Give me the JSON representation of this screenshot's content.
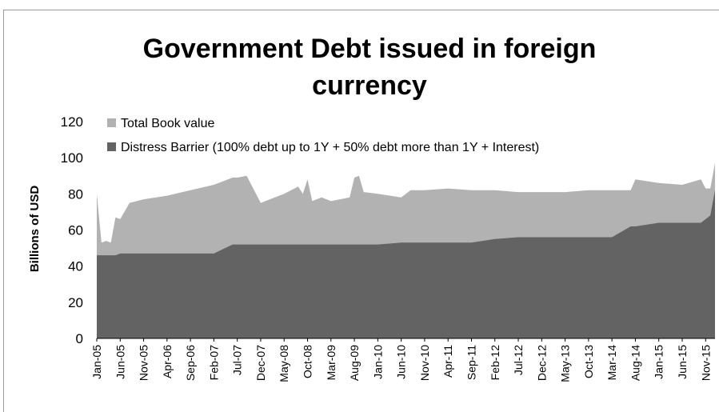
{
  "chart_data": {
    "type": "area",
    "title": "Government Debt issued in foreign currency",
    "title_lines": [
      "Government Debt issued in foreign",
      "currency"
    ],
    "ylabel": "Billions of USD",
    "xlabel": "",
    "ylim": [
      0,
      120
    ],
    "yticks": [
      0,
      20,
      40,
      60,
      80,
      100,
      120
    ],
    "grid": false,
    "legend_position": "top-left",
    "x_tick_labels": [
      "Jan-05",
      "Jun-05",
      "Nov-05",
      "Apr-06",
      "Sep-06",
      "Feb-07",
      "Jul-07",
      "Dec-07",
      "May-08",
      "Oct-08",
      "Mar-09",
      "Aug-09",
      "Jan-10",
      "Jun-10",
      "Nov-10",
      "Apr-11",
      "Sep-11",
      "Feb-12",
      "Jul-12",
      "Dec-12",
      "May-13",
      "Oct-13",
      "Mar-14",
      "Aug-14",
      "Jan-15",
      "Jun-15",
      "Nov-15"
    ],
    "x": [
      "Jan-05",
      "Feb-05",
      "Mar-05",
      "Apr-05",
      "May-05",
      "Jun-05",
      "Aug-05",
      "Nov-05",
      "Apr-06",
      "Sep-06",
      "Feb-07",
      "Jun-07",
      "Jul-07",
      "Sep-07",
      "Dec-07",
      "May-08",
      "Aug-08",
      "Sep-08",
      "Oct-08",
      "Nov-08",
      "Jan-09",
      "Mar-09",
      "Jul-09",
      "Aug-09",
      "Sep-09",
      "Oct-09",
      "Jan-10",
      "Jun-10",
      "Aug-10",
      "Nov-10",
      "Apr-11",
      "Sep-11",
      "Feb-12",
      "Jul-12",
      "Dec-12",
      "May-13",
      "Oct-13",
      "Dec-13",
      "Mar-14",
      "Jul-14",
      "Aug-14",
      "Jan-15",
      "Jun-15",
      "Oct-15",
      "Nov-15",
      "Dec-15",
      "Jan-16"
    ],
    "series": [
      {
        "name": "Total Book value",
        "color": "#b2b2b2",
        "values": [
          80,
          53,
          54,
          53,
          67,
          66,
          75,
          77,
          79,
          82,
          85,
          89,
          89,
          90,
          75,
          80,
          84,
          80,
          88,
          76,
          78,
          76,
          78,
          89,
          90,
          81,
          80,
          78,
          82,
          82,
          83,
          82,
          82,
          81,
          81,
          81,
          82,
          82,
          82,
          82,
          88,
          86,
          85,
          88,
          83,
          83,
          97
        ]
      },
      {
        "name": "Distress Barrier (100% debt up to 1Y + 50% debt more than 1Y + Interest)",
        "color": "#636363",
        "values": [
          46,
          46,
          46,
          46,
          46,
          47,
          47,
          47,
          47,
          47,
          47,
          52,
          52,
          52,
          52,
          52,
          52,
          52,
          52,
          52,
          52,
          52,
          52,
          52,
          52,
          52,
          52,
          53,
          53,
          53,
          53,
          53,
          55,
          56,
          56,
          56,
          56,
          56,
          56,
          62,
          62,
          64,
          64,
          64,
          66,
          68,
          82
        ]
      }
    ]
  }
}
